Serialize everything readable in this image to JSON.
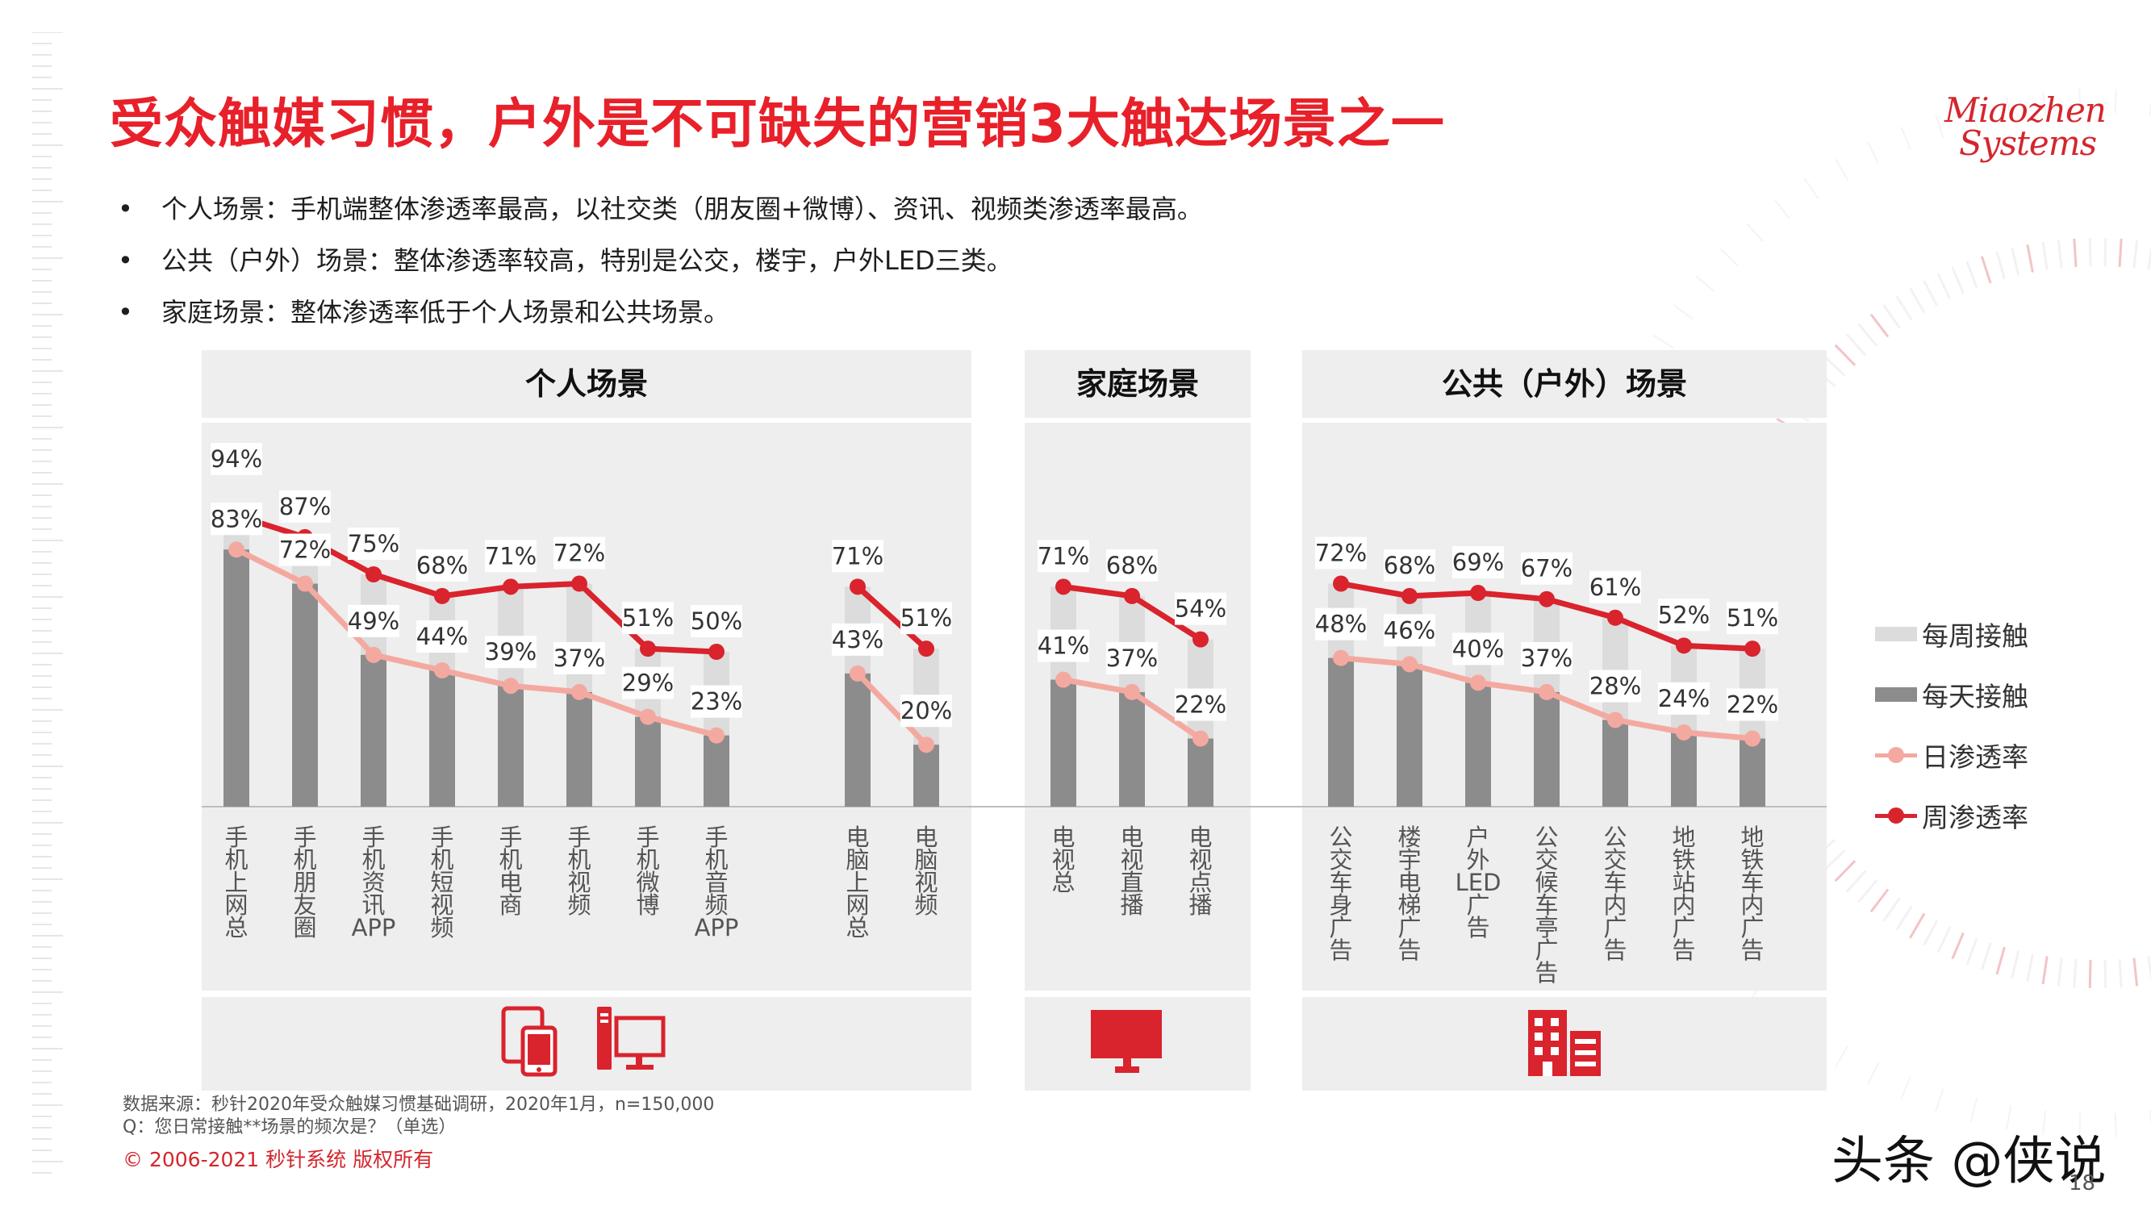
{
  "title": "受众触媒习惯，户外是不可缺失的营销3大触达场景之一",
  "logo": {
    "line1": "Miaozhen",
    "line2": "Systems"
  },
  "bullets": [
    "个人场景：手机端整体渗透率最高，以社交类（朋友圈+微博）、资讯、视频类渗透率最高。",
    "公共（户外）场景：整体渗透率较高，特别是公交，楼宇，户外LED三类。",
    "家庭场景：整体渗透率低于个人场景和公共场景。"
  ],
  "panels": {
    "personal": "个人场景",
    "home": "家庭场景",
    "public": "公共（户外）场景"
  },
  "icons": {
    "personal": [
      "devices-icon",
      "desktop-computer-icon"
    ],
    "home": [
      "tv-icon"
    ],
    "public": [
      "building-icon"
    ]
  },
  "colors": {
    "title": "#e8202a",
    "weekly_bar": "#dcdcdc",
    "daily_bar": "#8c8c8c",
    "daily_line": "#f4a9a0",
    "weekly_line": "#d9232d",
    "icon": "#d9232d"
  },
  "chart_data": {
    "type": "bar",
    "categories": [
      "手机上网总",
      "手机朋友圈",
      "手机资讯APP",
      "手机短视频",
      "手机电商",
      "手机视频",
      "手机微博",
      "手机音频APP",
      "电脑上网总",
      "电脑视频",
      "电视总",
      "电视直播",
      "电视点播",
      "公交车身广告",
      "楼宇电梯广告",
      "户外LED广告",
      "公交候车亭广告",
      "公交车内广告",
      "地铁站内广告",
      "地铁车内广告"
    ],
    "groups": [
      {
        "name": "个人场景",
        "categories": [
          "手机上网总",
          "手机朋友圈",
          "手机资讯APP",
          "手机短视频",
          "手机电商",
          "手机视频",
          "手机微博",
          "手机音频APP"
        ]
      },
      {
        "name": "个人场景",
        "categories": [
          "电脑上网总",
          "电脑视频"
        ]
      },
      {
        "name": "家庭场景",
        "categories": [
          "电视总",
          "电视直播",
          "电视点播"
        ]
      },
      {
        "name": "公共（户外）场景",
        "categories": [
          "公交车身广告",
          "楼宇电梯广告",
          "户外LED广告",
          "公交候车亭广告",
          "公交车内广告",
          "地铁站内广告",
          "地铁车内广告"
        ]
      }
    ],
    "series": [
      {
        "name": "每周接触",
        "kind": "bar",
        "values": [
          94,
          87,
          75,
          68,
          71,
          72,
          51,
          50,
          71,
          51,
          71,
          68,
          54,
          72,
          68,
          69,
          67,
          61,
          52,
          51
        ]
      },
      {
        "name": "每天接触",
        "kind": "bar",
        "values": [
          83,
          72,
          49,
          44,
          39,
          37,
          29,
          23,
          43,
          20,
          41,
          37,
          22,
          48,
          46,
          40,
          37,
          28,
          24,
          22
        ]
      },
      {
        "name": "日渗透率",
        "kind": "line",
        "values": [
          83,
          72,
          49,
          44,
          39,
          37,
          29,
          23,
          43,
          20,
          41,
          37,
          22,
          48,
          46,
          40,
          37,
          28,
          24,
          22
        ]
      },
      {
        "name": "周渗透率",
        "kind": "line",
        "values": [
          94,
          87,
          75,
          68,
          71,
          72,
          51,
          50,
          71,
          51,
          71,
          68,
          54,
          72,
          68,
          69,
          67,
          61,
          52,
          51
        ]
      }
    ],
    "data_labels": [
      [
        "94%",
        "83%"
      ],
      [
        "87%",
        "72%"
      ],
      [
        "75%",
        "49%"
      ],
      [
        "68%",
        "44%"
      ],
      [
        "71%",
        "39%"
      ],
      [
        "72%",
        "37%"
      ],
      [
        "51%",
        "29%"
      ],
      [
        "50%",
        "23%"
      ],
      [
        "71%",
        "43%"
      ],
      [
        "51%",
        "20%"
      ],
      [
        "71%",
        "41%"
      ],
      [
        "68%",
        "37%"
      ],
      [
        "54%",
        "22%"
      ],
      [
        "72%",
        "48%"
      ],
      [
        "68%",
        "46%"
      ],
      [
        "69%",
        "40%"
      ],
      [
        "67%",
        "37%"
      ],
      [
        "61%",
        "28%"
      ],
      [
        "52%",
        "24%"
      ],
      [
        "51%",
        "22%"
      ]
    ],
    "ylim": [
      0,
      100
    ],
    "legend": [
      "每周接触",
      "每天接触",
      "日渗透率",
      "周渗透率"
    ],
    "legend_position": "right",
    "grid": false
  },
  "source": "数据来源：秒针2020年受众触媒习惯基础调研，2020年1月，n=150,000",
  "question": "Q：您日常接触**场景的频次是？（单选）",
  "copyright": "© 2006-2021 秒针系统 版权所有",
  "watermark": "头条 @侠说",
  "page_number": "18"
}
